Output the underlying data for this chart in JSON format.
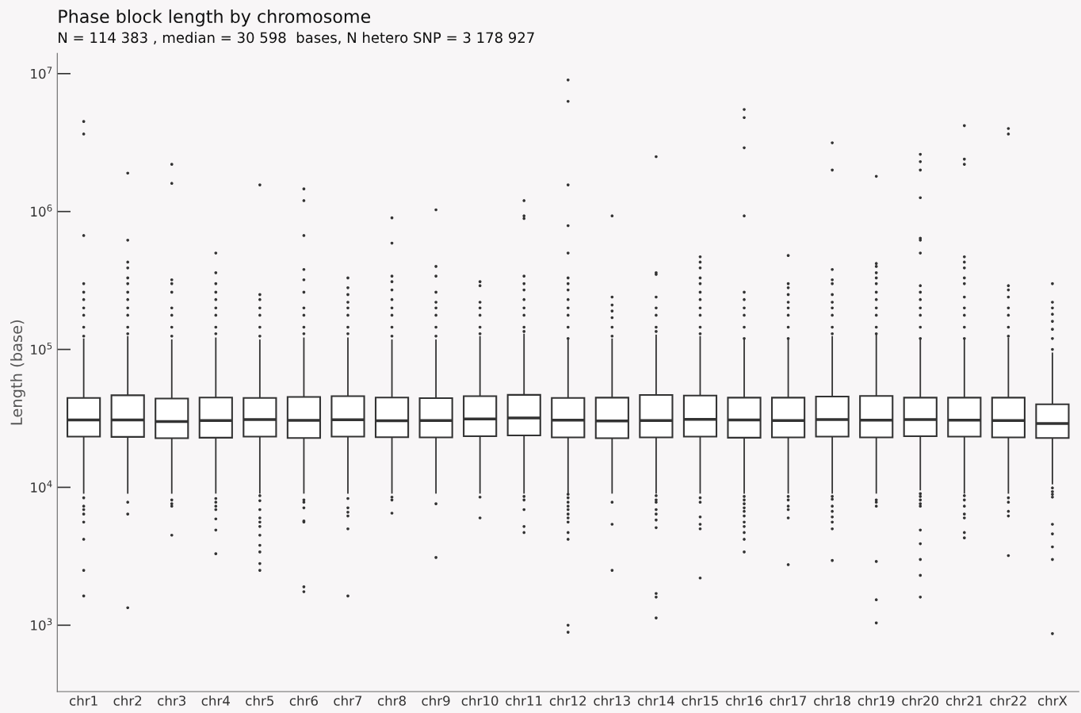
{
  "chart_data": {
    "type": "box",
    "title": "Phase block length by chromosome",
    "subtitle": "N = 114 383 , median = 30 598  bases, N hetero SNP = 3 178 927",
    "ylabel": "Length (base)",
    "log": "y",
    "grid": false,
    "legend": false,
    "ylim": [
      330,
      14000000
    ],
    "yticks": [
      {
        "value": 1000,
        "label": "10$^{3}$"
      },
      {
        "value": 10000,
        "label": "10$^{4}$"
      },
      {
        "value": 100000,
        "label": "10$^{5}$"
      },
      {
        "value": 1000000,
        "label": "10$^{6}$"
      },
      {
        "value": 10000000,
        "label": "10$^{7}$"
      }
    ],
    "categories": [
      "chr1",
      "chr2",
      "chr3",
      "chr4",
      "chr5",
      "chr6",
      "chr7",
      "chr8",
      "chr9",
      "chr10",
      "chr11",
      "chr12",
      "chr13",
      "chr14",
      "chr15",
      "chr16",
      "chr17",
      "chr18",
      "chr19",
      "chr20",
      "chr21",
      "chr22",
      "chrX"
    ],
    "boxes": [
      {
        "low": 9000,
        "q1": 23300,
        "median": 30800,
        "q3": 44500,
        "high": 120000,
        "outliers": [
          4500000,
          3650000,
          670000,
          300000,
          260000,
          230000,
          200000,
          177000,
          145000,
          125000,
          8400,
          7300,
          6900,
          6400,
          5600,
          4200,
          2500,
          1630
        ]
      },
      {
        "low": 9000,
        "q1": 23200,
        "median": 30800,
        "q3": 46500,
        "high": 125000,
        "outliers": [
          1900000,
          620000,
          430000,
          390000,
          330000,
          300000,
          260000,
          230000,
          200000,
          177000,
          145000,
          130000,
          7800,
          6400,
          1340
        ]
      },
      {
        "low": 9000,
        "q1": 22700,
        "median": 30000,
        "q3": 44000,
        "high": 118000,
        "outliers": [
          2200000,
          1600000,
          320000,
          300000,
          260000,
          200000,
          177000,
          145000,
          125000,
          8100,
          7600,
          7300,
          4500
        ]
      },
      {
        "low": 9000,
        "q1": 22900,
        "median": 30500,
        "q3": 44800,
        "high": 122000,
        "outliers": [
          500000,
          360000,
          300000,
          260000,
          230000,
          200000,
          177000,
          145000,
          130000,
          8300,
          7800,
          7300,
          6900,
          5900,
          4900,
          3300
        ]
      },
      {
        "low": 9000,
        "q1": 23300,
        "median": 31000,
        "q3": 44500,
        "high": 118000,
        "outliers": [
          1560000,
          250000,
          230000,
          200000,
          177000,
          145000,
          125000,
          8700,
          8000,
          6900,
          6000,
          5600,
          5200,
          4500,
          3800,
          3400,
          2800,
          2500
        ]
      },
      {
        "low": 9000,
        "q1": 22800,
        "median": 30600,
        "q3": 45200,
        "high": 122000,
        "outliers": [
          1460000,
          1200000,
          670000,
          380000,
          320000,
          260000,
          200000,
          177000,
          145000,
          130000,
          8100,
          7800,
          7100,
          5700,
          5600,
          1900,
          1750
        ]
      },
      {
        "low": 9000,
        "q1": 23300,
        "median": 30900,
        "q3": 45800,
        "high": 122000,
        "outliers": [
          330000,
          280000,
          250000,
          220000,
          200000,
          177000,
          145000,
          130000,
          8300,
          7100,
          6600,
          6200,
          5000,
          1630
        ]
      },
      {
        "low": 9000,
        "q1": 23100,
        "median": 30400,
        "q3": 44800,
        "high": 118000,
        "outliers": [
          900000,
          590000,
          340000,
          310000,
          270000,
          230000,
          200000,
          177000,
          145000,
          125000,
          8500,
          8100,
          6500
        ]
      },
      {
        "low": 9000,
        "q1": 23000,
        "median": 30500,
        "q3": 44300,
        "high": 118000,
        "outliers": [
          1030000,
          400000,
          340000,
          260000,
          220000,
          200000,
          177000,
          145000,
          125000,
          7600,
          3100
        ]
      },
      {
        "low": 9000,
        "q1": 23500,
        "median": 31300,
        "q3": 45800,
        "high": 125000,
        "outliers": [
          310000,
          290000,
          220000,
          200000,
          177000,
          145000,
          130000,
          8500,
          6000
        ]
      },
      {
        "low": 9000,
        "q1": 23800,
        "median": 31800,
        "q3": 46800,
        "high": 130000,
        "outliers": [
          1200000,
          930000,
          890000,
          340000,
          300000,
          270000,
          230000,
          200000,
          177000,
          145000,
          135000,
          8600,
          8100,
          6900,
          5200,
          4700
        ]
      },
      {
        "low": 9000,
        "q1": 23000,
        "median": 30700,
        "q3": 44500,
        "high": 118000,
        "outliers": [
          9000000,
          6300000,
          1560000,
          790000,
          500000,
          330000,
          300000,
          270000,
          230000,
          200000,
          177000,
          145000,
          120000,
          8900,
          8400,
          7800,
          7300,
          6900,
          6400,
          6000,
          5600,
          4700,
          4200,
          1000,
          890
        ]
      },
      {
        "low": 9000,
        "q1": 22700,
        "median": 30300,
        "q3": 44700,
        "high": 120000,
        "outliers": [
          930000,
          240000,
          210000,
          190000,
          170000,
          145000,
          125000,
          7800,
          5400,
          2500
        ]
      },
      {
        "low": 9000,
        "q1": 23000,
        "median": 30500,
        "q3": 46700,
        "high": 128000,
        "outliers": [
          2500000,
          360000,
          350000,
          240000,
          200000,
          177000,
          145000,
          135000,
          8700,
          8100,
          7800,
          6900,
          6400,
          5800,
          5100,
          1700,
          1600,
          1130
        ]
      },
      {
        "low": 9000,
        "q1": 23300,
        "median": 31100,
        "q3": 46300,
        "high": 125000,
        "outliers": [
          470000,
          430000,
          390000,
          330000,
          300000,
          260000,
          230000,
          200000,
          177000,
          145000,
          130000,
          8400,
          7800,
          6100,
          5400,
          5000,
          2200
        ]
      },
      {
        "low": 9000,
        "q1": 22900,
        "median": 30800,
        "q3": 44700,
        "high": 120000,
        "outliers": [
          5500000,
          4800000,
          2900000,
          930000,
          260000,
          230000,
          200000,
          177000,
          145000,
          120000,
          8600,
          8100,
          7600,
          7100,
          6700,
          6200,
          5600,
          5200,
          4700,
          4200,
          3400
        ]
      },
      {
        "low": 9000,
        "q1": 23000,
        "median": 30500,
        "q3": 44700,
        "high": 120000,
        "outliers": [
          480000,
          300000,
          280000,
          250000,
          220000,
          200000,
          177000,
          145000,
          120000,
          8600,
          8100,
          7300,
          6900,
          6000,
          2750
        ]
      },
      {
        "low": 9000,
        "q1": 23300,
        "median": 31000,
        "q3": 45500,
        "high": 125000,
        "outliers": [
          3150000,
          2000000,
          380000,
          320000,
          300000,
          250000,
          220000,
          200000,
          177000,
          145000,
          130000,
          8600,
          8200,
          7300,
          6700,
          6100,
          5600,
          5000,
          2950
        ]
      },
      {
        "low": 9000,
        "q1": 23000,
        "median": 30700,
        "q3": 46000,
        "high": 128000,
        "outliers": [
          1800000,
          420000,
          400000,
          360000,
          330000,
          300000,
          260000,
          230000,
          200000,
          177000,
          145000,
          130000,
          8100,
          7800,
          7300,
          2900,
          1530,
          1040
        ]
      },
      {
        "low": 9500,
        "q1": 23500,
        "median": 31000,
        "q3": 44700,
        "high": 120000,
        "outliers": [
          2600000,
          2300000,
          2000000,
          1260000,
          640000,
          620000,
          500000,
          290000,
          260000,
          230000,
          200000,
          177000,
          145000,
          120000,
          9000,
          8600,
          8100,
          7600,
          7300,
          4900,
          3900,
          3000,
          2300,
          1600
        ]
      },
      {
        "low": 9000,
        "q1": 23300,
        "median": 30700,
        "q3": 44700,
        "high": 120000,
        "outliers": [
          4200000,
          2400000,
          2200000,
          470000,
          430000,
          390000,
          330000,
          300000,
          240000,
          200000,
          177000,
          145000,
          120000,
          8700,
          8100,
          7300,
          6400,
          6000,
          4700,
          4300
        ]
      },
      {
        "low": 9000,
        "q1": 23000,
        "median": 30500,
        "q3": 44700,
        "high": 122000,
        "outliers": [
          4000000,
          3650000,
          290000,
          270000,
          240000,
          200000,
          177000,
          145000,
          125000,
          8400,
          7800,
          6700,
          6200,
          3200
        ]
      },
      {
        "low": 10500,
        "q1": 22800,
        "median": 29000,
        "q3": 40000,
        "high": 95000,
        "outliers": [
          300000,
          220000,
          200000,
          180000,
          160000,
          140000,
          120000,
          100000,
          9900,
          9300,
          8900,
          8500,
          5400,
          4600,
          3700,
          3000,
          870
        ]
      }
    ]
  }
}
